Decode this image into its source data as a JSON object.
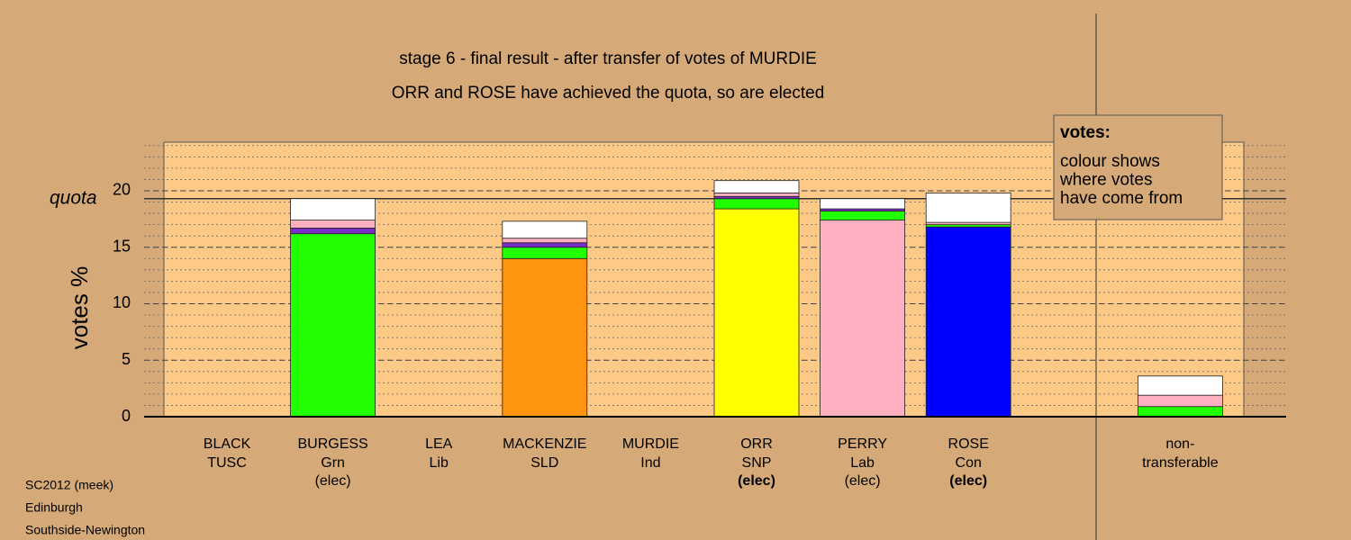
{
  "chart_data": {
    "type": "stacked_bar",
    "title": "stage 6 - final result - after transfer of votes of MURDIE",
    "subtitle": "ORR and ROSE have achieved the quota, so are elected",
    "ylabel": "votes %",
    "categories": [
      "BLACK",
      "BURGESS",
      "LEA",
      "MACKENZIE",
      "MURDIE",
      "ORR",
      "PERRY",
      "ROSE",
      "non-"
    ],
    "parties": [
      "TUSC",
      "Grn",
      "Lib",
      "SLD",
      "Ind",
      "SNP",
      "Lab",
      "Con",
      "transferable"
    ],
    "status": [
      null,
      "(elec)",
      null,
      null,
      null,
      "(elec)",
      "(elec)",
      "(elec)",
      null
    ],
    "status_bold": [
      false,
      false,
      false,
      false,
      false,
      true,
      false,
      true,
      false
    ],
    "slots": [
      0,
      1,
      2,
      3,
      4,
      5,
      6,
      7,
      9
    ],
    "series": [
      {
        "colors": [
          null,
          "#22ff00",
          null,
          "#ff9410",
          null,
          "#ffff00",
          "#ffb0c0",
          "#0000ff",
          null
        ],
        "values": [
          null,
          16.2,
          null,
          14.0,
          null,
          18.4,
          17.4,
          16.8,
          null
        ]
      },
      {
        "color": "#22ff00",
        "values": [
          null,
          null,
          null,
          1.0,
          null,
          0.9,
          0.8,
          0.2,
          0.9
        ]
      },
      {
        "color": "#7a2bc8",
        "values": [
          null,
          0.5,
          null,
          0.4,
          null,
          0.2,
          0.2,
          null,
          null
        ]
      },
      {
        "color": "#ffb0c0",
        "values": [
          null,
          0.7,
          null,
          0.4,
          null,
          0.3,
          null,
          0.2,
          1.0
        ]
      },
      {
        "color": "#ffffff",
        "values": [
          null,
          1.9,
          null,
          1.5,
          null,
          1.1,
          0.9,
          2.6,
          1.7
        ]
      }
    ],
    "quota": {
      "label": "quota",
      "value": 19.3
    },
    "ylim": [
      0,
      24.3
    ],
    "yticks": [
      0,
      5,
      10,
      15,
      20
    ],
    "minor_grid_step": 1,
    "legend": {
      "title": "votes:",
      "lines": [
        "colour shows",
        "where votes",
        "have come from"
      ]
    },
    "footer": [
      "SC2012 (meek)",
      "Edinburgh",
      "Southside-Newington"
    ]
  }
}
